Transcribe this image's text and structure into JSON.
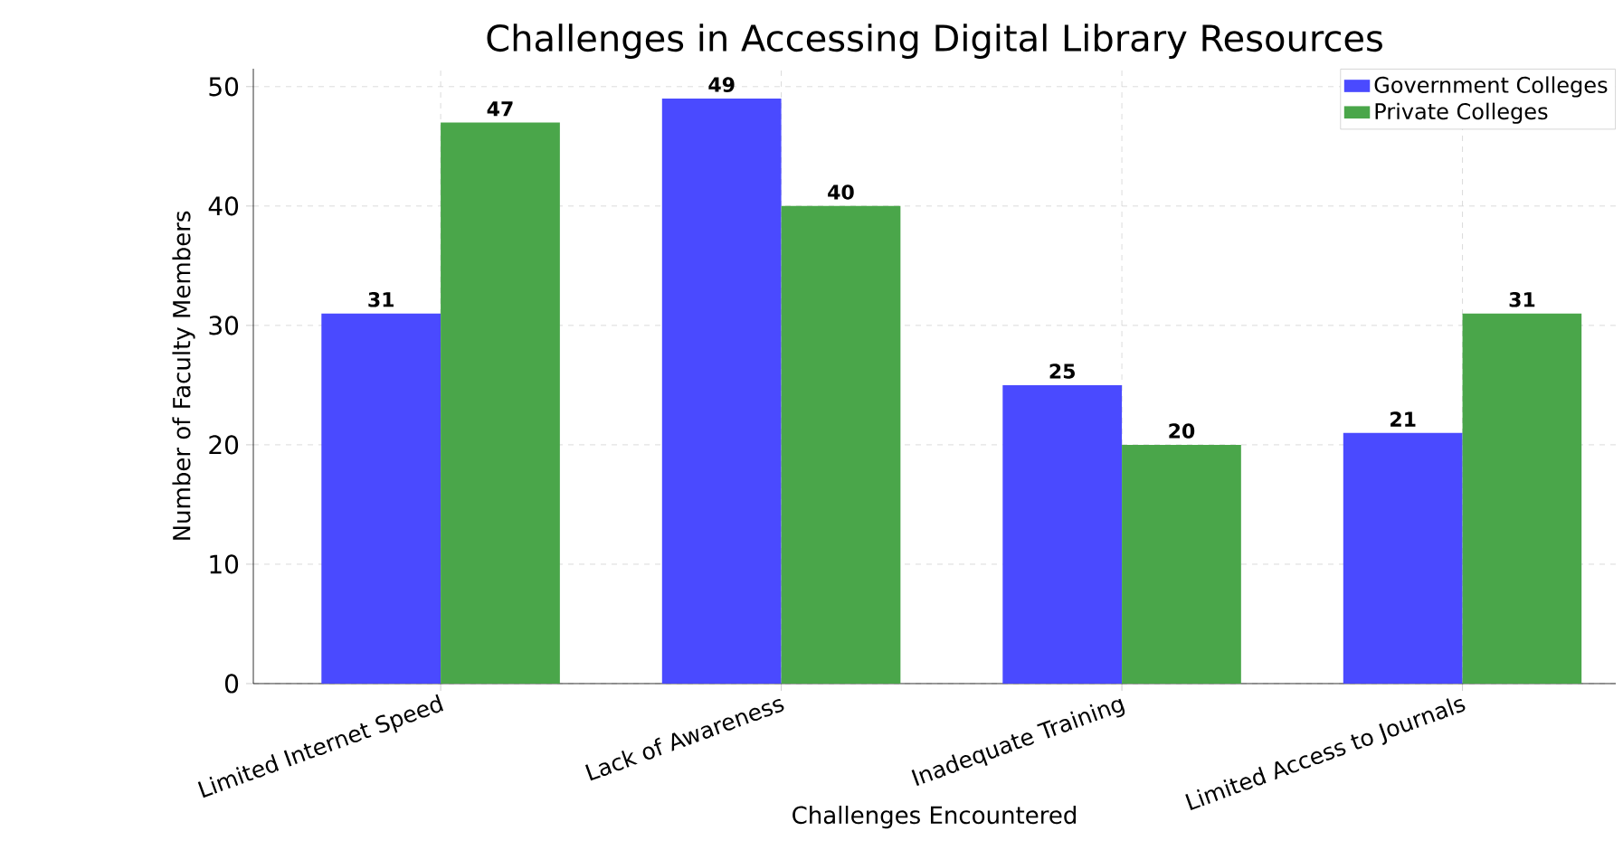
{
  "chart_data": {
    "type": "bar",
    "title": "Challenges in Accessing Digital Library Resources",
    "xlabel": "Challenges Encountered",
    "ylabel": "Number of Faculty Members",
    "categories": [
      "Limited Internet Speed",
      "Lack of Awareness",
      "Inadequate Training",
      "Limited Access to Journals"
    ],
    "series": [
      {
        "name": "Government Colleges",
        "color": "#4a4aff",
        "values": [
          31,
          49,
          25,
          21
        ]
      },
      {
        "name": "Private Colleges",
        "color": "#4aa64a",
        "values": [
          47,
          40,
          20,
          31
        ]
      }
    ],
    "ylim": [
      0,
      51.5
    ],
    "yticks": [
      0,
      10,
      20,
      30,
      40,
      50
    ],
    "grid": true,
    "legend": "top right",
    "data_labels": true
  }
}
